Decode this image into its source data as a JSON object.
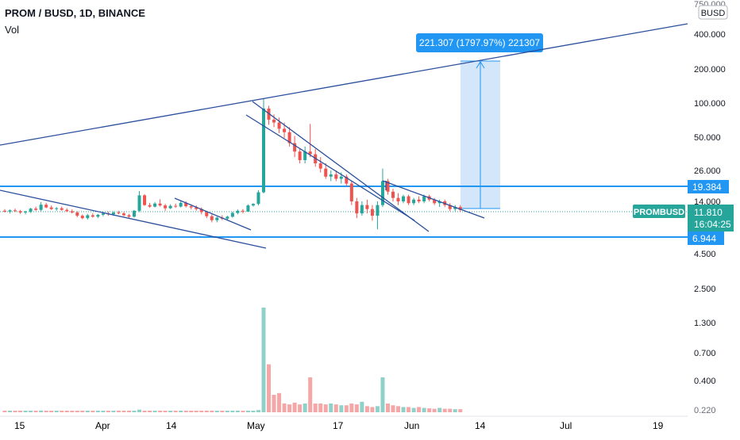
{
  "header": {
    "title": "PROM / BUSD, 1D, BINANCE",
    "volume_label": "Vol"
  },
  "price_axis": {
    "currency_badge": "BUSD",
    "ticks": [
      "750.000",
      "400.000",
      "200.000",
      "100.000",
      "50.000",
      "26.000",
      "14.000",
      "4.500",
      "2.500",
      "1.300",
      "0.700",
      "0.400",
      "0.220"
    ]
  },
  "time_axis": {
    "ticks": [
      "15",
      "Apr",
      "14",
      "May",
      "17",
      "Jun",
      "14",
      "Jul",
      "19"
    ]
  },
  "labels": {
    "level_upper": "19.384",
    "level_lower": "6.944",
    "symbol_tag": "PROMBUSD",
    "last_price": "11.810",
    "countdown": "16:04:25",
    "measure_tooltip": "221.307 (1797.97%) 221307"
  },
  "colors": {
    "up": "#26a69a",
    "down": "#ef5350",
    "vol_up": "#8fd1c8",
    "vol_down": "#f5a6a6",
    "trendline": "#2a4f9c",
    "level": "#2196f3",
    "measure_fill": "#cfe3f9",
    "badge": "#2196f3",
    "price_tag": "#26a69a"
  },
  "chart_data": {
    "type": "candlestick",
    "symbol": "PROM / BUSD",
    "interval": "1D",
    "exchange": "BINANCE",
    "scale": "log",
    "x_ticks": [
      "15",
      "Apr",
      "14",
      "May",
      "17",
      "Jun",
      "14",
      "Jul",
      "19"
    ],
    "horizontal_levels": [
      19.384,
      6.944
    ],
    "last_price": 11.81,
    "measure": {
      "change": 221.307,
      "percent": 1797.97,
      "ticks": 221307
    },
    "candles": [
      [
        11.6,
        12.0,
        11.2,
        11.4
      ],
      [
        11.4,
        11.9,
        11.0,
        11.7
      ],
      [
        11.7,
        12.1,
        11.3,
        11.5
      ],
      [
        11.5,
        11.8,
        10.9,
        11.2
      ],
      [
        11.2,
        11.6,
        10.8,
        11.4
      ],
      [
        11.4,
        12.3,
        11.1,
        12.1
      ],
      [
        12.1,
        12.6,
        11.6,
        11.8
      ],
      [
        11.8,
        13.8,
        11.5,
        13.1
      ],
      [
        13.1,
        13.6,
        12.2,
        12.4
      ],
      [
        12.4,
        12.9,
        11.8,
        12.0
      ],
      [
        12.0,
        12.5,
        11.6,
        12.2
      ],
      [
        12.2,
        12.6,
        11.6,
        11.8
      ],
      [
        11.8,
        12.2,
        11.3,
        11.5
      ],
      [
        11.5,
        11.9,
        11.0,
        11.2
      ],
      [
        11.2,
        11.5,
        10.2,
        10.5
      ],
      [
        10.5,
        10.8,
        9.8,
        10.0
      ],
      [
        10.0,
        10.9,
        9.7,
        10.6
      ],
      [
        10.6,
        11.0,
        10.1,
        10.3
      ],
      [
        10.3,
        10.9,
        10.0,
        10.7
      ],
      [
        10.7,
        11.3,
        10.4,
        11.0
      ],
      [
        11.0,
        11.4,
        10.5,
        10.8
      ],
      [
        10.8,
        11.5,
        10.5,
        11.2
      ],
      [
        11.2,
        11.6,
        10.8,
        11.0
      ],
      [
        11.0,
        11.3,
        10.4,
        10.6
      ],
      [
        10.6,
        10.9,
        10.0,
        10.3
      ],
      [
        10.3,
        11.8,
        10.1,
        11.6
      ],
      [
        11.6,
        17.2,
        11.3,
        15.8
      ],
      [
        15.8,
        16.2,
        12.8,
        13.0
      ],
      [
        13.0,
        13.6,
        12.3,
        12.6
      ],
      [
        12.6,
        13.8,
        12.4,
        13.4
      ],
      [
        13.4,
        14.6,
        12.6,
        12.9
      ],
      [
        12.9,
        13.3,
        11.6,
        12.2
      ],
      [
        12.2,
        13.2,
        12.0,
        12.8
      ],
      [
        12.8,
        13.4,
        12.3,
        12.6
      ],
      [
        12.6,
        14.2,
        12.4,
        13.6
      ],
      [
        13.6,
        14.0,
        12.4,
        12.7
      ],
      [
        12.7,
        13.2,
        11.9,
        12.4
      ],
      [
        12.4,
        12.9,
        11.6,
        12.0
      ],
      [
        12.0,
        12.4,
        10.8,
        11.3
      ],
      [
        11.3,
        11.6,
        10.0,
        10.4
      ],
      [
        10.4,
        10.8,
        9.2,
        9.6
      ],
      [
        9.6,
        10.3,
        9.2,
        10.1
      ],
      [
        10.1,
        10.6,
        9.6,
        9.9
      ],
      [
        9.9,
        10.5,
        9.5,
        10.3
      ],
      [
        10.3,
        11.4,
        10.1,
        11.1
      ],
      [
        11.1,
        11.9,
        10.8,
        11.6
      ],
      [
        11.6,
        12.0,
        11.0,
        11.4
      ],
      [
        11.4,
        13.2,
        11.3,
        12.9
      ],
      [
        12.9,
        13.5,
        12.6,
        13.3
      ],
      [
        13.3,
        17.5,
        12.9,
        16.8
      ],
      [
        16.8,
        110.0,
        16.4,
        90.0
      ],
      [
        90.0,
        95.0,
        65.0,
        72.0
      ],
      [
        72.0,
        80.0,
        62.0,
        68.0
      ],
      [
        68.0,
        75.0,
        55.0,
        60.0
      ],
      [
        60.0,
        68.0,
        50.0,
        56.0
      ],
      [
        56.0,
        62.0,
        42.0,
        45.0
      ],
      [
        45.0,
        52.0,
        34.0,
        38.0
      ],
      [
        38.0,
        40.0,
        30.0,
        32.0
      ],
      [
        32.0,
        42.0,
        30.0,
        38.0
      ],
      [
        38.0,
        66.0,
        34.0,
        36.0
      ],
      [
        36.0,
        40.0,
        28.0,
        30.0
      ],
      [
        30.0,
        34.0,
        25.0,
        27.0
      ],
      [
        27.0,
        30.0,
        22.0,
        23.0
      ],
      [
        23.0,
        26.0,
        21.0,
        24.0
      ],
      [
        24.0,
        26.0,
        21.0,
        22.0
      ],
      [
        22.0,
        25.0,
        20.0,
        23.0
      ],
      [
        23.0,
        24.0,
        19.0,
        20.0
      ],
      [
        20.0,
        21.0,
        13.0,
        14.0
      ],
      [
        14.0,
        15.0,
        10.0,
        11.0
      ],
      [
        11.0,
        14.0,
        10.5,
        13.0
      ],
      [
        13.0,
        14.5,
        11.0,
        12.0
      ],
      [
        12.0,
        13.0,
        9.5,
        10.5
      ],
      [
        10.5,
        14.0,
        8.0,
        13.0
      ],
      [
        13.0,
        27.0,
        12.5,
        21.0
      ],
      [
        21.0,
        22.0,
        16.0,
        17.0
      ],
      [
        17.0,
        18.0,
        14.0,
        15.0
      ],
      [
        15.0,
        16.5,
        13.0,
        14.0
      ],
      [
        14.0,
        16.0,
        13.5,
        15.5
      ],
      [
        15.5,
        16.0,
        13.0,
        13.5
      ],
      [
        13.5,
        15.0,
        13.0,
        14.5
      ],
      [
        14.5,
        15.5,
        13.5,
        14.0
      ],
      [
        14.0,
        16.0,
        13.5,
        15.5
      ],
      [
        15.5,
        16.0,
        14.0,
        14.5
      ],
      [
        14.5,
        15.0,
        13.0,
        13.5
      ],
      [
        13.5,
        14.5,
        12.5,
        14.0
      ],
      [
        14.0,
        14.5,
        12.5,
        13.0
      ],
      [
        13.0,
        13.5,
        11.5,
        12.0
      ],
      [
        12.0,
        13.0,
        11.5,
        12.5
      ],
      [
        12.5,
        13.0,
        11.3,
        11.8
      ]
    ],
    "volume_ratio": [
      1.2,
      1.0,
      1.1,
      0.9,
      1.0,
      1.3,
      1.1,
      2.0,
      1.2,
      1.0,
      1.0,
      1.1,
      0.9,
      0.9,
      1.3,
      1.4,
      1.1,
      0.9,
      1.0,
      1.1,
      1.0,
      1.1,
      0.9,
      1.0,
      1.2,
      1.4,
      3.0,
      1.6,
      1.2,
      1.2,
      1.3,
      1.2,
      1.1,
      1.0,
      1.2,
      1.2,
      1.1,
      1.0,
      1.3,
      1.6,
      1.8,
      1.5,
      1.3,
      1.3,
      1.4,
      1.5,
      1.2,
      1.8,
      1.6,
      2.5,
      120,
      55,
      20,
      22,
      10,
      9,
      11,
      9,
      10,
      40,
      10,
      10,
      9,
      10,
      9,
      8,
      8,
      10,
      9,
      12,
      7,
      6,
      7,
      40,
      10,
      8,
      7,
      6,
      6,
      5,
      6,
      5,
      4.5,
      4,
      5,
      4,
      4,
      3.5,
      3.5
    ]
  }
}
